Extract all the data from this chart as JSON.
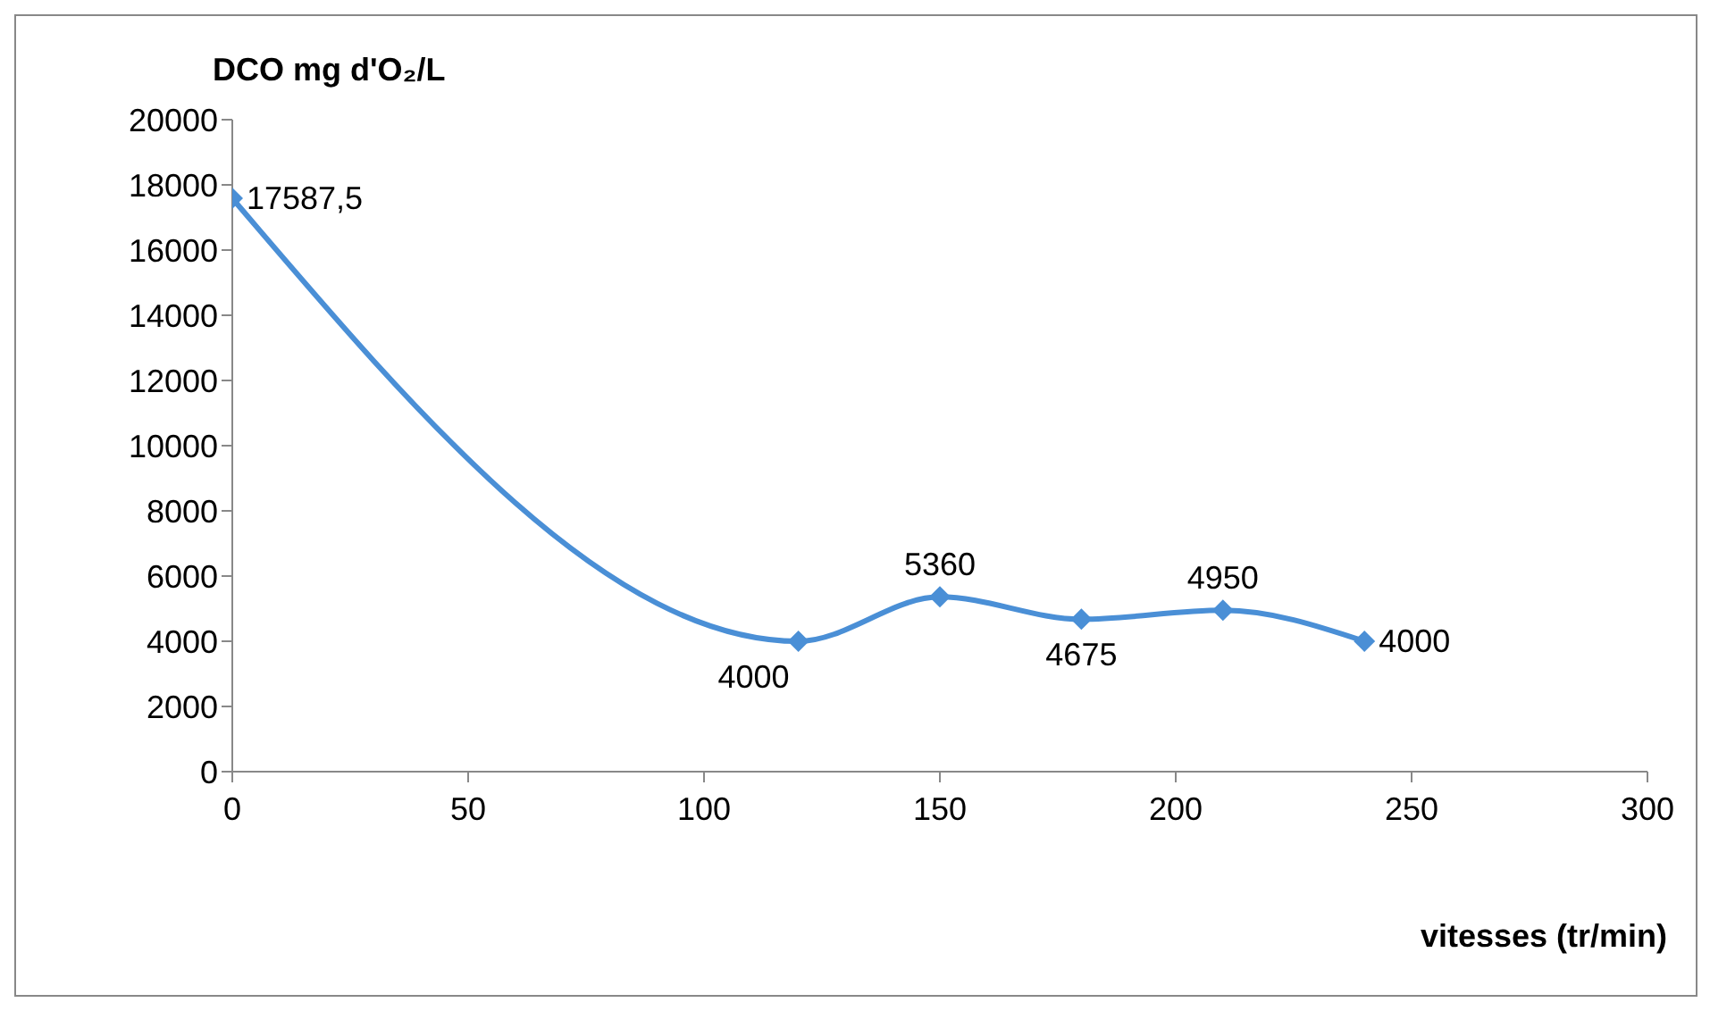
{
  "chart_data": {
    "type": "line",
    "ylabel": "DCO mg d'O₂/L",
    "xlabel": "vitesses (tr/min)",
    "x": [
      0,
      120,
      150,
      180,
      210,
      240
    ],
    "series": [
      {
        "color": "#4a8fd6",
        "values": [
          17587.5,
          4000,
          5360,
          4675,
          4950,
          4000
        ],
        "value_labels": [
          "17587,5",
          "4000",
          "5360",
          "4675",
          "4950",
          "4000"
        ]
      }
    ],
    "xlim": [
      0,
      300
    ],
    "xticks": [
      0,
      50,
      100,
      150,
      200,
      250,
      300
    ],
    "ylim": [
      0,
      20000
    ],
    "yticks": [
      0,
      2000,
      4000,
      6000,
      8000,
      10000,
      12000,
      14000,
      16000,
      18000,
      20000
    ],
    "grid": false,
    "legend": false,
    "marker": "diamond",
    "line_style": "solid"
  }
}
